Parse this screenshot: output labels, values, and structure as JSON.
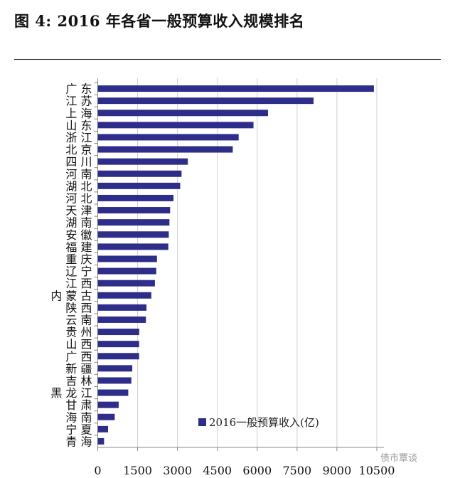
{
  "title": "图 4:  2016 年各省一般预算收入规模排名",
  "watermark": "债市覃谈",
  "chart_data": {
    "type": "bar",
    "orientation": "horizontal",
    "title": "2016 年各省一般预算收入规模排名",
    "xlabel": "",
    "ylabel": "",
    "xlim": [
      0,
      10500
    ],
    "xticks": [
      "0",
      "1500",
      "3000",
      "4500",
      "6000",
      "7500",
      "9000",
      "10500"
    ],
    "grid": true,
    "legend": {
      "position": "bottom-right",
      "entries": [
        "2016一般预算收入(亿)"
      ]
    },
    "bar_color": "#2e2e8a",
    "categories": [
      "广 东",
      "江 苏",
      "上 海",
      "山 东",
      "浙 江",
      "北 京",
      "四 川",
      "河 南",
      "湖 北",
      "河 北",
      "天 津",
      "湖 南",
      "安 徽",
      "福 建",
      "重 庆",
      "辽 宁",
      "江 西",
      "内 蒙 古",
      "陕 西",
      "云 南",
      "贵 州",
      "山 西",
      "广 西",
      "新 疆",
      "吉 林",
      "黑 龙 江",
      "甘 肃",
      "海 南",
      "宁 夏",
      "青 海"
    ],
    "series": [
      {
        "name": "2016一般预算收入(亿)",
        "values": [
          10390,
          8121,
          6406,
          5860,
          5302,
          5081,
          3389,
          3153,
          3102,
          2850,
          2723,
          2697,
          2673,
          2655,
          2228,
          2200,
          2151,
          2016,
          1834,
          1812,
          1561,
          1557,
          1556,
          1299,
          1264,
          1148,
          787,
          638,
          388,
          238
        ]
      }
    ]
  }
}
